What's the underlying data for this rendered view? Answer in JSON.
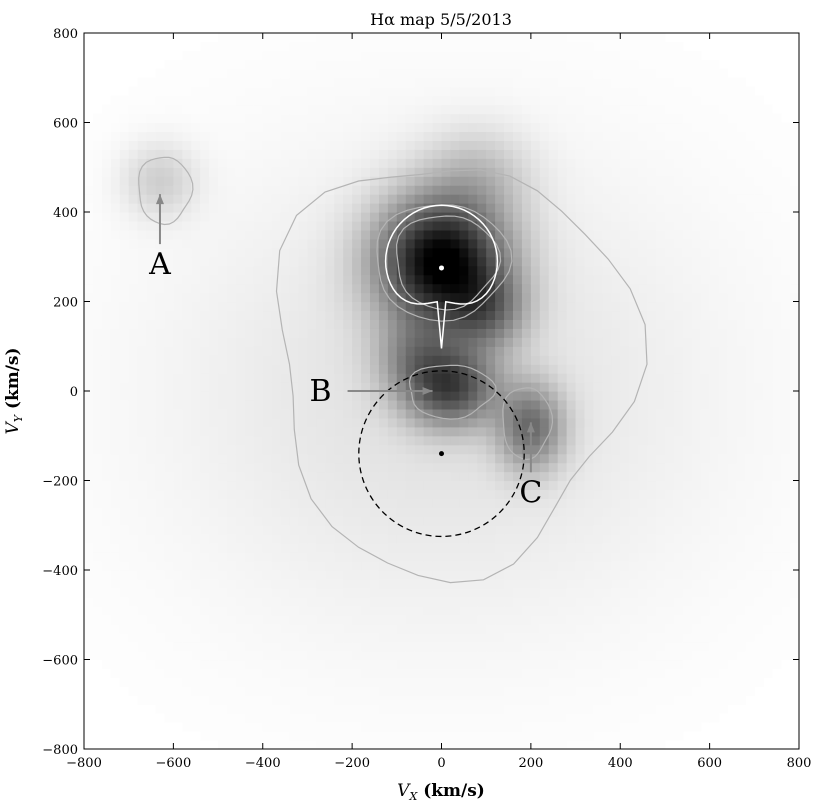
{
  "chart_data": {
    "type": "heatmap",
    "title": "Hα map 5/5/2013",
    "xlabel": "V_X (km/s)",
    "ylabel": "V_Y (km/s)",
    "xlim": [
      -800,
      800
    ],
    "ylim": [
      -800,
      800
    ],
    "xticks": [
      -800,
      -600,
      -400,
      -200,
      0,
      200,
      400,
      600,
      800
    ],
    "yticks": [
      -800,
      -600,
      -400,
      -200,
      0,
      200,
      400,
      600,
      800
    ],
    "xtick_labels": [
      "−800",
      "−600",
      "−400",
      "−200",
      "0",
      "200",
      "400",
      "600",
      "800"
    ],
    "ytick_labels": [
      "−800",
      "−600",
      "−400",
      "−200",
      "0",
      "200",
      "400",
      "600",
      "800"
    ],
    "colormap": "grayscale (white = low, black = high)",
    "emission_peaks": [
      {
        "vx": 0,
        "vy": 290,
        "sx": 95,
        "sy": 95,
        "amp": 1.0
      },
      {
        "vx": 20,
        "vy": 10,
        "sx": 70,
        "sy": 60,
        "amp": 0.62
      },
      {
        "vx": 200,
        "vy": -80,
        "sx": 50,
        "sy": 65,
        "amp": 0.45
      },
      {
        "vx": 100,
        "vy": 180,
        "sx": 60,
        "sy": 60,
        "amp": 0.35
      },
      {
        "vx": -60,
        "vy": 80,
        "sx": 60,
        "sy": 60,
        "amp": 0.25
      },
      {
        "vx": -630,
        "vy": 470,
        "sx": 55,
        "sy": 55,
        "amp": 0.12
      },
      {
        "vx": 80,
        "vy": 480,
        "sx": 80,
        "sy": 70,
        "amp": 0.15
      },
      {
        "vx": 0,
        "vy": 0,
        "sx": 380,
        "sy": 330,
        "amp": 0.07
      }
    ],
    "overlays": {
      "donor_center": {
        "vx": 0,
        "vy": 275,
        "color": "#ffffff"
      },
      "primary_center": {
        "vx": 0,
        "vy": -140,
        "color": "#000000"
      },
      "accretor_circle": {
        "vx": 0,
        "vy": -140,
        "r": 185,
        "style": "dashed",
        "color": "#000000"
      },
      "roche_lobe_outline": {
        "color": "#ffffff",
        "inner_point": {
          "vx": 0,
          "vy": 95
        }
      },
      "contour_color": "#b4b4b4"
    },
    "annotations": [
      {
        "label": "A",
        "points_to": {
          "vx": -630,
          "vy": 440
        },
        "arrow": "up"
      },
      {
        "label": "B",
        "points_to": {
          "vx": -20,
          "vy": 0
        },
        "arrow": "right"
      },
      {
        "label": "C",
        "points_to": {
          "vx": 200,
          "vy": -70
        },
        "arrow": "up"
      }
    ]
  }
}
